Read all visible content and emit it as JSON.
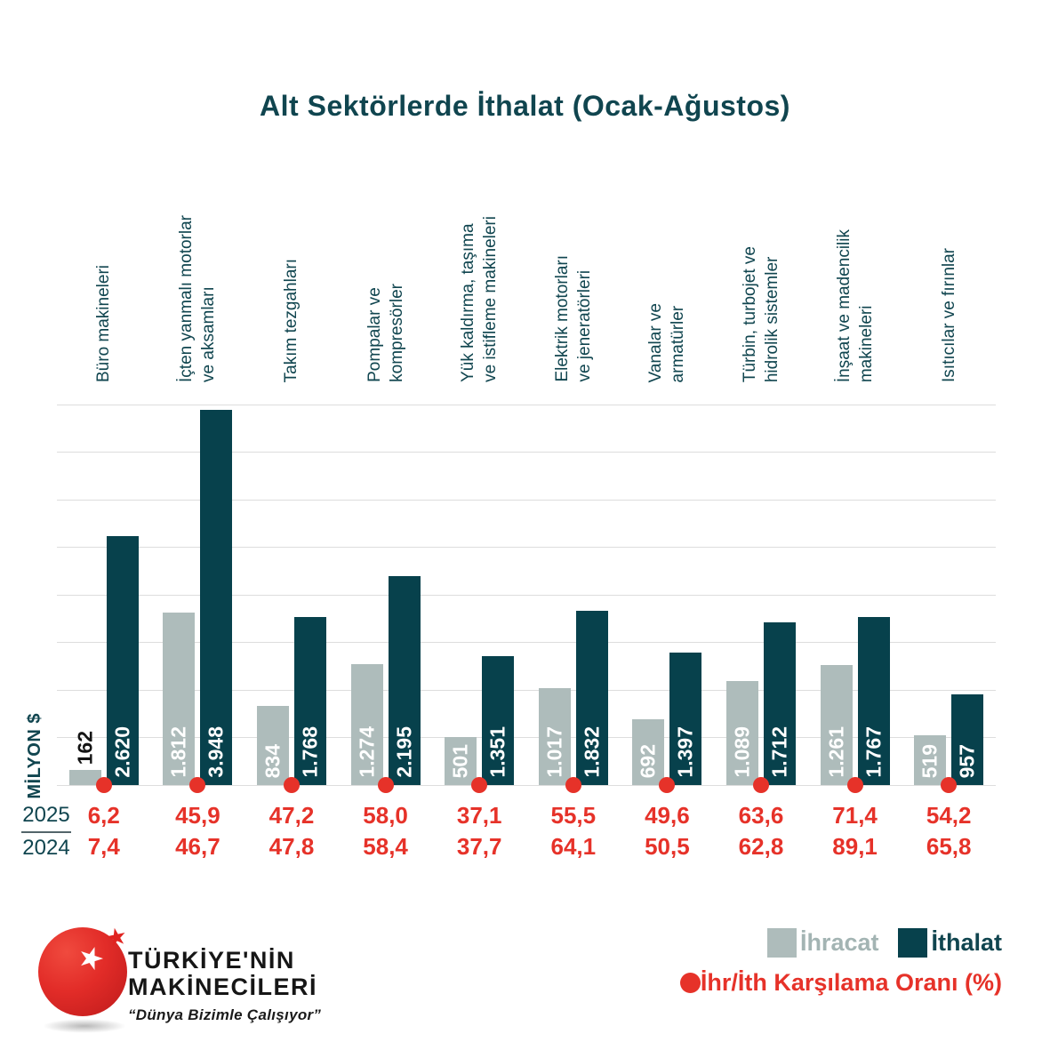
{
  "colors": {
    "export_bar": "#aebcbb",
    "import_bar": "#07414c",
    "accent_red": "#e63229",
    "teal_text": "#10454f"
  },
  "chart_data": {
    "type": "bar",
    "title": "Alt Sektörlerde İthalat (Ocak-Ağustos)",
    "unit_label": "MİLYON $",
    "ylim": [
      0,
      4000
    ],
    "grid_step": 500,
    "grid": true,
    "categories": [
      "Büro makineleri",
      "İçten yanmalı motorlar\nve aksamları",
      "Takım tezgahları",
      "Pompalar ve\nkompresörler",
      "Yük kaldırma, taşıma\nve istifleme makineleri",
      "Elektrik motorları\nve jeneratörleri",
      "Vanalar ve\narmatürler",
      "Türbin, turbojet ve\nhidrolik sistemler",
      "İnşaat ve madencilik\nmakineleri",
      "Isıtıcılar ve fırınlar"
    ],
    "series": [
      {
        "name": "İhracat",
        "values": [
          162,
          1812,
          834,
          1274,
          501,
          1017,
          692,
          1089,
          1261,
          519
        ],
        "labels": [
          "162",
          "1.812",
          "834",
          "1.274",
          "501",
          "1.017",
          "692",
          "1.089",
          "1.261",
          "519"
        ]
      },
      {
        "name": "İthalat",
        "values": [
          2620,
          3948,
          1768,
          2195,
          1351,
          1832,
          1397,
          1712,
          1767,
          957
        ],
        "labels": [
          "2.620",
          "3.948",
          "1.768",
          "2.195",
          "1.351",
          "1.832",
          "1.397",
          "1.712",
          "1.767",
          "957"
        ]
      }
    ],
    "ratio": {
      "label": "İhr/İth Karşılama Oranı (%)",
      "rows": [
        {
          "year": "2025",
          "values": [
            "6,2",
            "45,9",
            "47,2",
            "58,0",
            "37,1",
            "55,5",
            "49,6",
            "63,6",
            "71,4",
            "54,2"
          ]
        },
        {
          "year": "2024",
          "values": [
            "7,4",
            "46,7",
            "47,8",
            "58,4",
            "37,7",
            "64,1",
            "50,5",
            "62,8",
            "89,1",
            "65,8"
          ]
        }
      ]
    },
    "legend_position": "bottom-right"
  },
  "logo": {
    "line1": "TÜRKİYE'NİN",
    "line2": "MAKİNECİLERİ",
    "tagline": "“Dünya Bizimle Çalışıyor”"
  }
}
